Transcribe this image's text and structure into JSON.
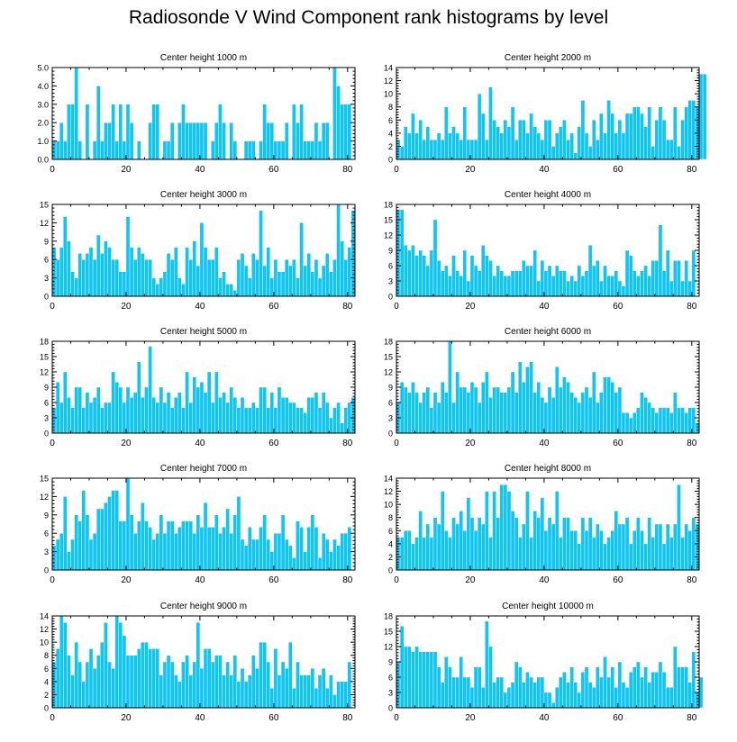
{
  "title": "Radiosonde V Wind Component rank histograms by level",
  "colors": {
    "bar": "#11c5f2",
    "bar_edge": "#ffffff",
    "axis": "#000000"
  },
  "chart_data": [
    {
      "type": "bar",
      "title": "Center height 1000 m",
      "xlim": [
        0,
        82
      ],
      "ylim": [
        0,
        5
      ],
      "x_ticks": [
        0,
        20,
        40,
        60,
        80
      ],
      "y_ticks": [
        0,
        1,
        2,
        3,
        4,
        5
      ],
      "y_tick_labels": [
        "0.0",
        "1.0",
        "2.0",
        "3.0",
        "4.0",
        "5.0"
      ],
      "values": [
        1,
        1,
        2,
        1,
        3,
        3,
        5,
        1,
        0,
        3,
        0,
        1,
        4,
        1,
        2,
        2,
        3,
        1,
        3,
        1,
        3,
        2,
        0,
        1,
        0,
        0,
        2,
        3,
        3,
        0,
        1,
        1,
        2,
        0,
        2,
        3,
        2,
        2,
        2,
        2,
        2,
        2,
        0,
        1,
        2,
        3,
        2,
        0,
        2,
        1,
        0,
        0,
        1,
        1,
        1,
        0,
        1,
        3,
        2,
        2,
        1,
        1,
        1,
        2,
        0,
        3,
        2,
        3,
        1,
        1,
        1,
        2,
        1,
        2,
        2,
        0,
        5,
        4,
        3,
        3,
        3
      ]
    },
    {
      "type": "bar",
      "title": "Center height 2000 m",
      "xlim": [
        0,
        82
      ],
      "ylim": [
        0,
        14
      ],
      "x_ticks": [
        0,
        20,
        40,
        60,
        80
      ],
      "y_ticks": [
        0,
        2,
        4,
        6,
        8,
        10,
        12,
        14
      ],
      "y_tick_labels": [
        "0",
        "2",
        "4",
        "6",
        "8",
        "10",
        "12",
        "14"
      ],
      "values": [
        3,
        2,
        5,
        4,
        7,
        4,
        6,
        3,
        5,
        3,
        3,
        4,
        3,
        8,
        4,
        5,
        4,
        3,
        8,
        3,
        3,
        3,
        10,
        7,
        3,
        11,
        6,
        5,
        4,
        6,
        5,
        8,
        3,
        6,
        6,
        4,
        7,
        5,
        4,
        3,
        6,
        6,
        2,
        4,
        5,
        6,
        3,
        4,
        1,
        5,
        9,
        4,
        2,
        6,
        3,
        7,
        4,
        9,
        7,
        4,
        6,
        4,
        7,
        7,
        8,
        8,
        7,
        5,
        8,
        2,
        6,
        8,
        6,
        3,
        3,
        8,
        2,
        6,
        8,
        9,
        9,
        8,
        13,
        13
      ]
    },
    {
      "type": "bar",
      "title": "Center height 3000 m",
      "xlim": [
        0,
        82
      ],
      "ylim": [
        0,
        15
      ],
      "x_ticks": [
        0,
        20,
        40,
        60,
        80
      ],
      "y_ticks": [
        0,
        3,
        6,
        9,
        12,
        15
      ],
      "y_tick_labels": [
        "0",
        "3",
        "6",
        "9",
        "12",
        "15"
      ],
      "values": [
        8,
        6,
        8,
        13,
        9,
        4,
        3,
        7,
        6,
        7,
        8,
        6,
        10,
        7,
        9,
        8,
        6,
        6,
        4,
        4,
        13,
        8,
        6,
        8,
        7,
        6,
        6,
        3,
        2,
        3,
        4,
        7,
        6,
        8,
        3,
        2,
        8,
        6,
        9,
        5,
        12,
        8,
        6,
        6,
        8,
        3,
        4,
        2,
        2,
        1,
        6,
        7,
        5,
        3,
        7,
        6,
        14,
        5,
        8,
        3,
        6,
        4,
        4,
        6,
        5,
        6,
        3,
        12,
        5,
        7,
        4,
        6,
        3,
        5,
        7,
        4,
        6,
        15,
        9,
        6,
        8,
        14
      ]
    },
    {
      "type": "bar",
      "title": "Center height 4000 m",
      "xlim": [
        0,
        82
      ],
      "ylim": [
        0,
        18
      ],
      "x_ticks": [
        0,
        20,
        40,
        60,
        80
      ],
      "y_ticks": [
        0,
        3,
        6,
        9,
        12,
        15,
        18
      ],
      "y_tick_labels": [
        "0",
        "3",
        "6",
        "9",
        "12",
        "15",
        "18"
      ],
      "values": [
        17,
        17,
        10,
        9,
        10,
        8,
        9,
        8,
        6,
        9,
        15,
        7,
        5,
        6,
        4,
        8,
        5,
        4,
        9,
        3,
        8,
        6,
        5,
        10,
        8,
        7,
        4,
        6,
        5,
        4,
        4,
        5,
        5,
        5,
        7,
        6,
        6,
        9,
        3,
        7,
        5,
        6,
        4,
        6,
        5,
        5,
        3,
        4,
        3,
        6,
        4,
        5,
        10,
        6,
        7,
        3,
        6,
        4,
        4,
        5,
        3,
        2,
        9,
        8,
        5,
        4,
        5,
        6,
        4,
        7,
        7,
        14,
        5,
        9,
        3,
        7,
        7,
        3,
        7,
        3,
        9
      ]
    },
    {
      "type": "bar",
      "title": "Center height 5000 m",
      "xlim": [
        0,
        82
      ],
      "ylim": [
        0,
        18
      ],
      "x_ticks": [
        0,
        20,
        40,
        60,
        80
      ],
      "y_ticks": [
        0,
        3,
        6,
        9,
        12,
        15,
        18
      ],
      "y_tick_labels": [
        "0",
        "3",
        "6",
        "9",
        "12",
        "15",
        "18"
      ],
      "values": [
        5,
        10,
        6,
        12,
        7,
        5,
        9,
        9,
        5,
        8,
        6,
        7,
        9,
        5,
        6,
        6,
        12,
        10,
        9,
        6,
        9,
        7,
        8,
        14,
        7,
        9,
        17,
        7,
        6,
        9,
        6,
        8,
        5,
        7,
        8,
        5,
        12,
        6,
        11,
        9,
        10,
        8,
        12,
        6,
        12,
        7,
        8,
        6,
        9,
        7,
        5,
        7,
        5,
        5,
        6,
        5,
        9,
        9,
        5,
        8,
        5,
        9,
        7,
        7,
        6,
        6,
        5,
        5,
        4,
        7,
        7,
        8,
        5,
        8,
        6,
        3,
        5,
        6,
        2,
        5,
        6,
        7
      ]
    },
    {
      "type": "bar",
      "title": "Center height 6000 m",
      "xlim": [
        0,
        82
      ],
      "ylim": [
        0,
        18
      ],
      "x_ticks": [
        0,
        20,
        40,
        60,
        80
      ],
      "y_ticks": [
        0,
        3,
        6,
        9,
        12,
        15,
        18
      ],
      "y_tick_labels": [
        "0",
        "3",
        "6",
        "9",
        "12",
        "15",
        "18"
      ],
      "values": [
        6,
        10,
        9,
        8,
        10,
        8,
        6,
        8,
        9,
        5,
        8,
        6,
        10,
        8,
        18,
        6,
        12,
        9,
        9,
        8,
        10,
        9,
        6,
        10,
        12,
        7,
        9,
        9,
        8,
        8,
        9,
        12,
        8,
        14,
        10,
        13,
        14,
        8,
        10,
        7,
        6,
        9,
        7,
        13,
        9,
        11,
        10,
        8,
        7,
        6,
        8,
        9,
        7,
        12,
        6,
        8,
        11,
        11,
        10,
        8,
        9,
        4,
        4,
        3,
        4,
        5,
        8,
        7,
        6,
        5,
        4,
        5,
        5,
        5,
        4,
        8,
        5,
        5,
        4,
        5,
        5,
        2
      ]
    },
    {
      "type": "bar",
      "title": "Center height 7000 m",
      "xlim": [
        0,
        82
      ],
      "ylim": [
        0,
        15
      ],
      "x_ticks": [
        0,
        20,
        40,
        60,
        80
      ],
      "y_ticks": [
        0,
        3,
        6,
        9,
        12,
        15
      ],
      "y_tick_labels": [
        "0",
        "3",
        "6",
        "9",
        "12",
        "15"
      ],
      "values": [
        4,
        5,
        6,
        12,
        3,
        5,
        9,
        8,
        13,
        9,
        5,
        6,
        10,
        10,
        11,
        12,
        13,
        13,
        8,
        8,
        15,
        9,
        6,
        8,
        11,
        8,
        7,
        5,
        6,
        9,
        6,
        8,
        8,
        6,
        7,
        8,
        8,
        8,
        6,
        9,
        7,
        11,
        7,
        7,
        9,
        6,
        7,
        10,
        6,
        9,
        12,
        5,
        4,
        7,
        5,
        5,
        7,
        9,
        5,
        3,
        6,
        6,
        9,
        5,
        4,
        2,
        8,
        7,
        3,
        7,
        9,
        7,
        2,
        6,
        5,
        3,
        5,
        4,
        6,
        6,
        7
      ]
    },
    {
      "type": "bar",
      "title": "Center height 8000 m",
      "xlim": [
        0,
        82
      ],
      "ylim": [
        0,
        14
      ],
      "x_ticks": [
        0,
        20,
        40,
        60,
        80
      ],
      "y_ticks": [
        0,
        2,
        4,
        6,
        8,
        10,
        12,
        14
      ],
      "y_tick_labels": [
        "0",
        "2",
        "4",
        "6",
        "8",
        "10",
        "12",
        "14"
      ],
      "values": [
        5,
        5,
        6,
        6,
        4,
        5,
        9,
        5,
        7,
        5,
        8,
        7,
        12,
        6,
        5,
        8,
        7,
        9,
        6,
        11,
        8,
        6,
        8,
        7,
        12,
        5,
        12,
        8,
        13,
        13,
        12,
        9,
        8,
        5,
        7,
        12,
        5,
        9,
        8,
        11,
        6,
        8,
        7,
        12,
        5,
        8,
        8,
        6,
        6,
        4,
        8,
        6,
        8,
        5,
        7,
        6,
        4,
        5,
        6,
        9,
        7,
        7,
        8,
        4,
        6,
        8,
        6,
        4,
        8,
        5,
        7,
        7,
        4,
        7,
        5,
        7,
        13,
        5,
        7,
        6,
        8,
        7
      ]
    },
    {
      "type": "bar",
      "title": "Center height 9000 m",
      "xlim": [
        0,
        82
      ],
      "ylim": [
        0,
        14
      ],
      "x_ticks": [
        0,
        20,
        40,
        60,
        80
      ],
      "y_ticks": [
        0,
        2,
        4,
        6,
        8,
        10,
        12,
        14
      ],
      "y_tick_labels": [
        "0",
        "2",
        "4",
        "6",
        "8",
        "10",
        "12",
        "14"
      ],
      "values": [
        7,
        9,
        14,
        13,
        8,
        5,
        10,
        7,
        4,
        7,
        9,
        6,
        8,
        10,
        13,
        7,
        6,
        14,
        13,
        11,
        8,
        8,
        8,
        9,
        10,
        10,
        9,
        9,
        9,
        5,
        7,
        8,
        7,
        5,
        4,
        7,
        8,
        5,
        7,
        13,
        6,
        9,
        9,
        7,
        8,
        8,
        5,
        7,
        5,
        8,
        4,
        6,
        4,
        5,
        8,
        6,
        10,
        10,
        7,
        3,
        9,
        5,
        7,
        6,
        10,
        3,
        7,
        5,
        5,
        5,
        6,
        3,
        5,
        6,
        3,
        5,
        2,
        4,
        4,
        4,
        7
      ]
    },
    {
      "type": "bar",
      "title": "Center height 10000 m",
      "xlim": [
        0,
        82
      ],
      "ylim": [
        0,
        18
      ],
      "x_ticks": [
        0,
        20,
        40,
        60,
        80
      ],
      "y_ticks": [
        0,
        3,
        6,
        9,
        12,
        15,
        18
      ],
      "y_tick_labels": [
        "0",
        "3",
        "6",
        "9",
        "12",
        "15",
        "18"
      ],
      "values": [
        9,
        16,
        12,
        12,
        11,
        12,
        11,
        11,
        11,
        11,
        11,
        8,
        5,
        10,
        8,
        6,
        6,
        10,
        6,
        6,
        4,
        8,
        8,
        4,
        17,
        12,
        5,
        6,
        6,
        3,
        4,
        5,
        9,
        8,
        5,
        7,
        6,
        5,
        6,
        6,
        3,
        3,
        1,
        4,
        6,
        7,
        5,
        8,
        5,
        3,
        7,
        8,
        5,
        4,
        8,
        6,
        10,
        6,
        8,
        4,
        9,
        5,
        4,
        7,
        8,
        9,
        6,
        8,
        5,
        7,
        7,
        9,
        7,
        4,
        4,
        12,
        8,
        8,
        8,
        5,
        11,
        3,
        6
      ]
    }
  ]
}
